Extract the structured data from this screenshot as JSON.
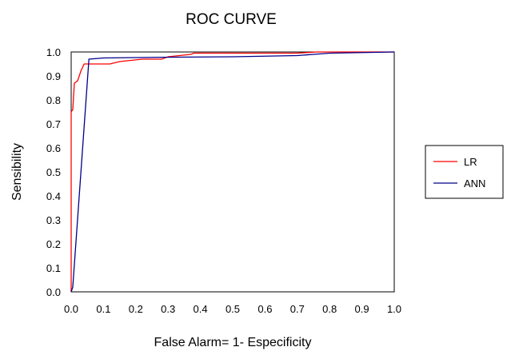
{
  "chart_data": {
    "type": "line",
    "title": "ROC CURVE",
    "xlabel": "False Alarm= 1- Especificity",
    "ylabel": "Sensibility",
    "xlim": [
      0,
      1
    ],
    "ylim": [
      0,
      1
    ],
    "x_ticks": [
      "0.0",
      "0.1",
      "0.2",
      "0.3",
      "0.4",
      "0.5",
      "0.6",
      "0.7",
      "0.8",
      "0.9",
      "1.0"
    ],
    "y_ticks": [
      "0.0",
      "0.1",
      "0.2",
      "0.3",
      "0.4",
      "0.5",
      "0.6",
      "0.7",
      "0.8",
      "0.9",
      "1.0"
    ],
    "grid": false,
    "legend_position": "right",
    "series": [
      {
        "name": "LR",
        "color": "#ff0000",
        "points": [
          [
            0.0,
            0.0
          ],
          [
            0.0,
            0.75
          ],
          [
            0.005,
            0.76
          ],
          [
            0.01,
            0.87
          ],
          [
            0.02,
            0.88
          ],
          [
            0.03,
            0.92
          ],
          [
            0.04,
            0.95
          ],
          [
            0.12,
            0.95
          ],
          [
            0.15,
            0.96
          ],
          [
            0.22,
            0.97
          ],
          [
            0.28,
            0.97
          ],
          [
            0.3,
            0.98
          ],
          [
            0.37,
            0.99
          ],
          [
            0.38,
            0.995
          ],
          [
            0.7,
            0.995
          ],
          [
            0.76,
            1.0
          ],
          [
            1.0,
            1.0
          ]
        ]
      },
      {
        "name": "ANN",
        "color": "#00008b",
        "points": [
          [
            0.0,
            0.0
          ],
          [
            0.005,
            0.02
          ],
          [
            0.055,
            0.97
          ],
          [
            0.1,
            0.975
          ],
          [
            0.28,
            0.978
          ],
          [
            0.5,
            0.98
          ],
          [
            0.7,
            0.985
          ],
          [
            0.75,
            0.99
          ],
          [
            0.8,
            0.995
          ],
          [
            1.0,
            1.0
          ]
        ]
      }
    ]
  }
}
